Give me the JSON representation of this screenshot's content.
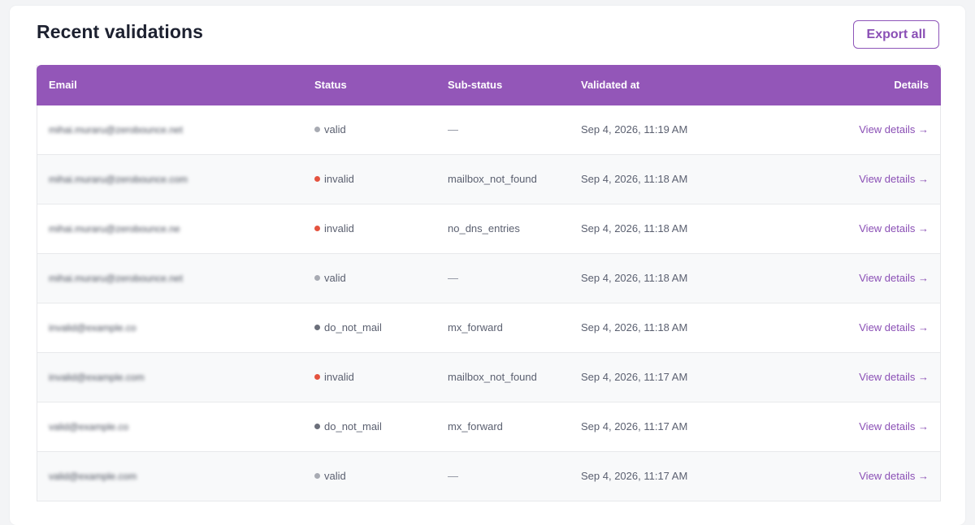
{
  "page": {
    "title": "Recent validations",
    "export_label": "Export all"
  },
  "colors": {
    "accent": "#9356b8",
    "valid": "#a8abb3",
    "invalid": "#e4533f",
    "do_not_mail": "#6b6f7a"
  },
  "table": {
    "headers": {
      "email": "Email",
      "status": "Status",
      "sub_status": "Sub-status",
      "validated_at": "Validated at",
      "details": "Details"
    },
    "rows": [
      {
        "email": "mihai.muraru@zerobounce.net",
        "status": "valid",
        "status_color": "#a8abb3",
        "sub_status": "—",
        "validated_at": "Sep 4, 2026, 11:19 AM",
        "details": "View details →"
      },
      {
        "email": "mihai.muraru@zerobounce.com",
        "status": "invalid",
        "status_color": "#e4533f",
        "sub_status": "mailbox_not_found",
        "validated_at": "Sep 4, 2026, 11:18 AM",
        "details": "View details →"
      },
      {
        "email": "mihai.muraru@zerobounce.ne",
        "status": "invalid",
        "status_color": "#e4533f",
        "sub_status": "no_dns_entries",
        "validated_at": "Sep 4, 2026, 11:18 AM",
        "details": "View details →"
      },
      {
        "email": "mihai.muraru@zerobounce.net",
        "status": "valid",
        "status_color": "#a8abb3",
        "sub_status": "—",
        "validated_at": "Sep 4, 2026, 11:18 AM",
        "details": "View details →"
      },
      {
        "email": "invalid@example.co",
        "status": "do_not_mail",
        "status_color": "#6b6f7a",
        "sub_status": "mx_forward",
        "validated_at": "Sep 4, 2026, 11:18 AM",
        "details": "View details →"
      },
      {
        "email": "invalid@example.com",
        "status": "invalid",
        "status_color": "#e4533f",
        "sub_status": "mailbox_not_found",
        "validated_at": "Sep 4, 2026, 11:17 AM",
        "details": "View details →"
      },
      {
        "email": "valid@example.co",
        "status": "do_not_mail",
        "status_color": "#6b6f7a",
        "sub_status": "mx_forward",
        "validated_at": "Sep 4, 2026, 11:17 AM",
        "details": "View details →"
      },
      {
        "email": "valid@example.com",
        "status": "valid",
        "status_color": "#a8abb3",
        "sub_status": "—",
        "validated_at": "Sep 4, 2026, 11:17 AM",
        "details": "View details →"
      }
    ]
  }
}
